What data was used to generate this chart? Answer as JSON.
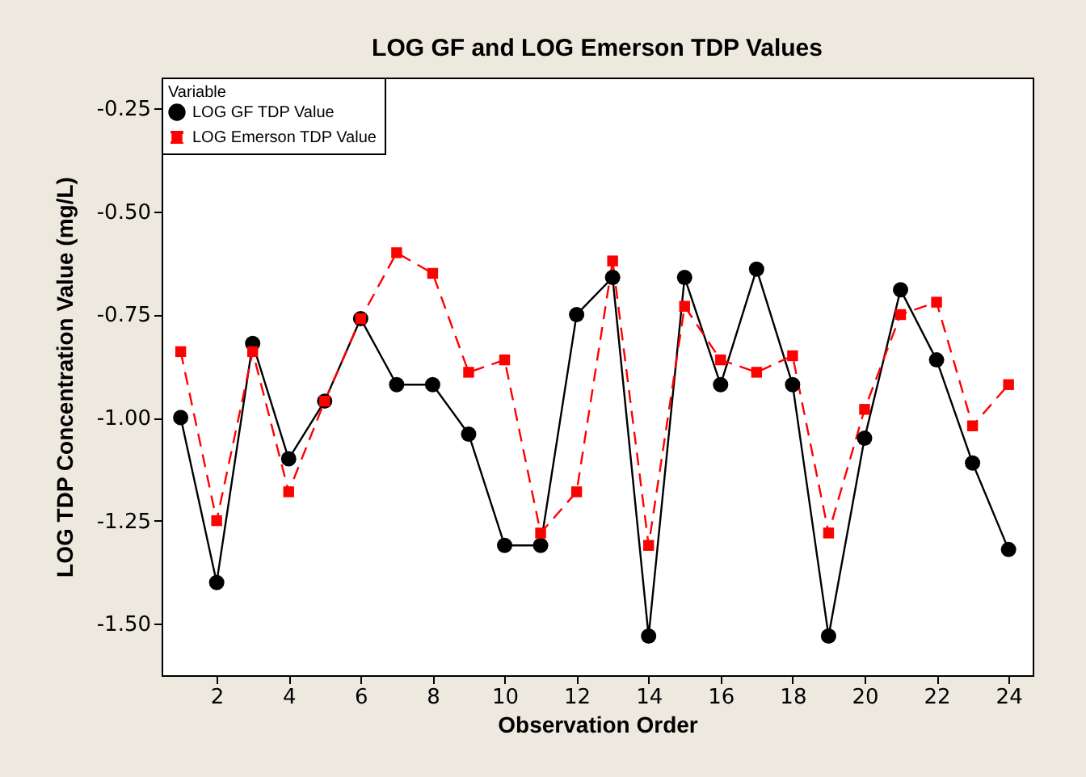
{
  "chart_data": {
    "type": "line",
    "title": "LOG GF and LOG Emerson TDP Values",
    "xlabel": "Observation Order",
    "ylabel": "LOG TDP Concentration Value  (mg/L)",
    "legend_title": "Variable",
    "legend": "top left",
    "grid": false,
    "x": [
      1,
      2,
      3,
      4,
      5,
      6,
      7,
      8,
      9,
      10,
      11,
      12,
      13,
      14,
      15,
      16,
      17,
      18,
      19,
      20,
      21,
      22,
      23,
      24
    ],
    "xlim": [
      0.47,
      24.67
    ],
    "xticks": [
      2,
      4,
      6,
      8,
      10,
      12,
      14,
      16,
      18,
      20,
      22,
      24
    ],
    "ylim": [
      -1.625,
      -0.175
    ],
    "yticks": [
      {
        "value": -1.5,
        "label": "-1.50"
      },
      {
        "value": -1.25,
        "label": "-1.25"
      },
      {
        "value": -1,
        "label": "-1.00"
      },
      {
        "value": -0.75,
        "label": "-0.75"
      },
      {
        "value": -0.5,
        "label": "-0.50"
      },
      {
        "value": -0.25,
        "label": "-0.25"
      }
    ],
    "series": [
      {
        "name": "LOG GF TDP Value",
        "color": "#000000",
        "marker": "circle",
        "line_style": "solid",
        "values": [
          -1.0,
          -1.4,
          -0.82,
          -1.1,
          -0.96,
          -0.76,
          -0.92,
          -0.92,
          -1.04,
          -1.31,
          -1.31,
          -0.75,
          -0.66,
          -1.53,
          -0.66,
          -0.92,
          -0.64,
          -0.92,
          -1.53,
          -1.05,
          -0.69,
          -0.86,
          -1.11,
          -1.32
        ]
      },
      {
        "name": "LOG Emerson TDP Value",
        "color": "#ff0000",
        "marker": "square",
        "line_style": "dashed",
        "values": [
          -0.84,
          -1.25,
          -0.84,
          -1.18,
          -0.96,
          -0.76,
          -0.6,
          -0.65,
          -0.89,
          -0.86,
          -1.28,
          -1.18,
          -0.62,
          -1.31,
          -0.73,
          -0.86,
          -0.89,
          -0.85,
          -1.28,
          -0.98,
          -0.75,
          -0.72,
          -1.02,
          -0.92
        ]
      }
    ]
  }
}
